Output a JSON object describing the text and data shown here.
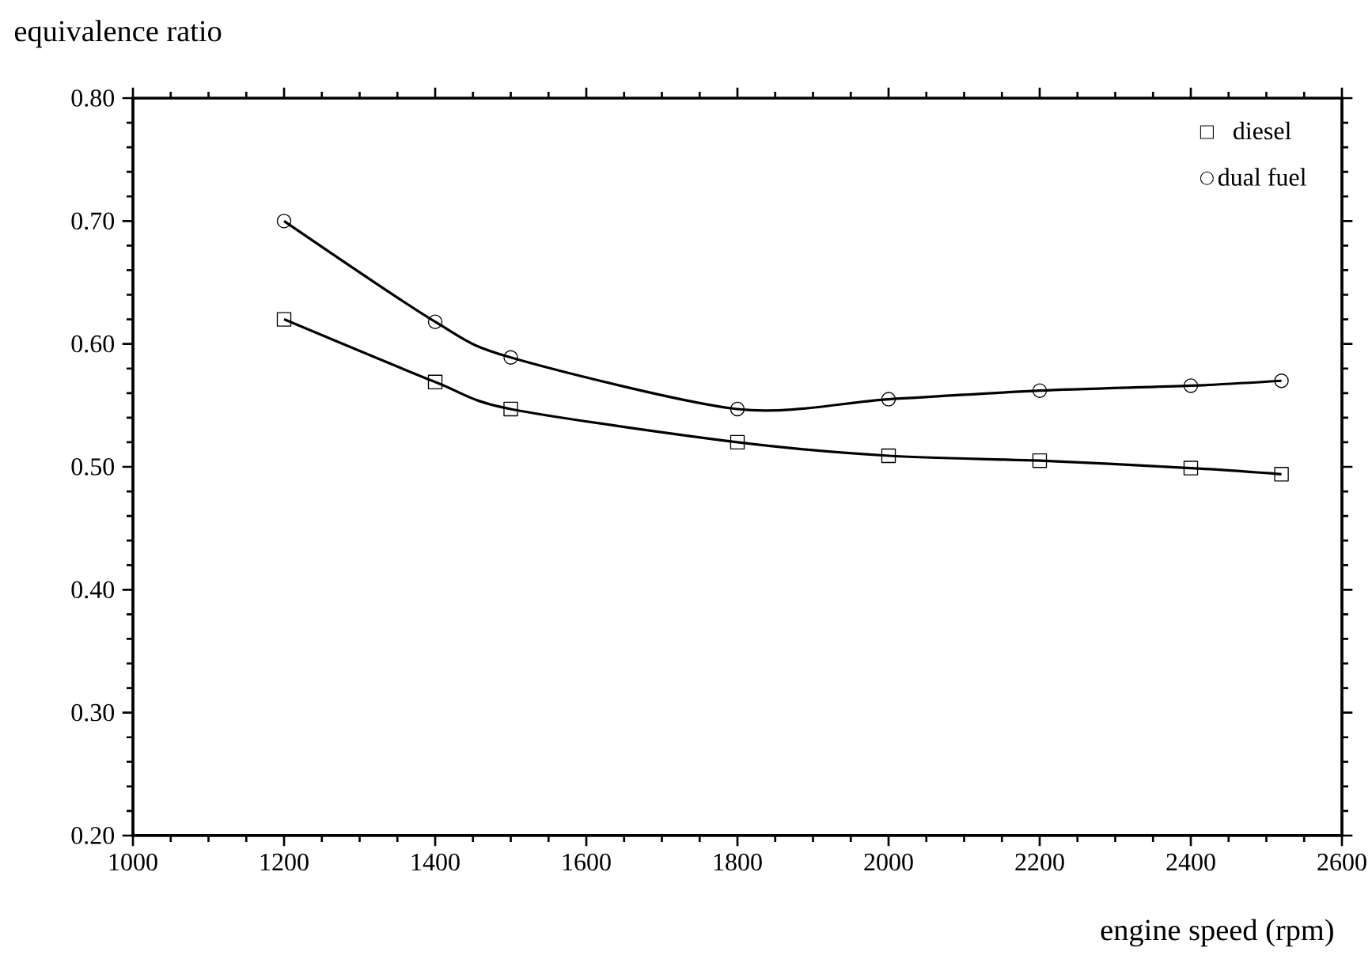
{
  "chart_data": {
    "type": "line",
    "xlabel": "engine speed (rpm)",
    "ylabel": "equivalence ratio",
    "x": [
      1200,
      1400,
      1500,
      1800,
      2000,
      2200,
      2400,
      2520
    ],
    "series": [
      {
        "name": "diesel",
        "color": "#000000",
        "marker": "square",
        "values": [
          0.62,
          0.569,
          0.547,
          0.52,
          0.509,
          0.505,
          0.499,
          0.494
        ]
      },
      {
        "name": "dual fuel",
        "color": "#000000",
        "marker": "circle",
        "values": [
          0.7,
          0.618,
          0.589,
          0.547,
          0.555,
          0.562,
          0.566,
          0.57
        ]
      }
    ],
    "xlim": [
      1000,
      2600
    ],
    "xticks": [
      1000,
      1200,
      1400,
      1600,
      1800,
      2000,
      2200,
      2400,
      2600
    ],
    "ylim": [
      0.2,
      0.8
    ],
    "yticks": [
      {
        "value": 0.2,
        "label": "0.20"
      },
      {
        "value": 0.3,
        "label": "0.30"
      },
      {
        "value": 0.4,
        "label": "0.40"
      },
      {
        "value": 0.5,
        "label": "0.50"
      },
      {
        "value": 0.6,
        "label": "0.60"
      },
      {
        "value": 0.7,
        "label": "0.70"
      },
      {
        "value": 0.8,
        "label": "0.80"
      }
    ],
    "grid": false,
    "legend": "top right",
    "line_style": "solid"
  }
}
